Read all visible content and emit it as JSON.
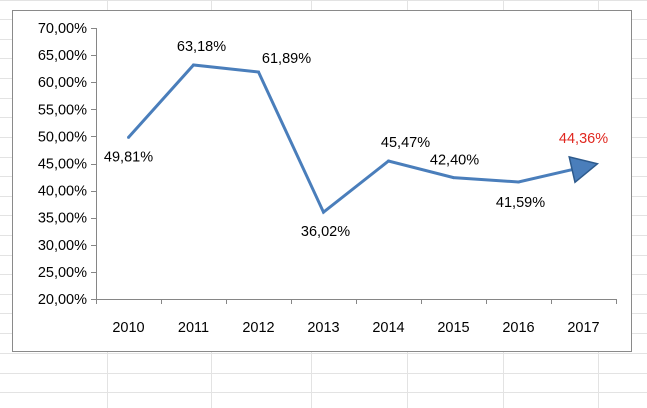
{
  "chart_data": {
    "type": "line",
    "title": "",
    "xlabel": "",
    "ylabel": "",
    "categories": [
      "2010",
      "2011",
      "2012",
      "2013",
      "2014",
      "2015",
      "2016",
      "2017"
    ],
    "series": [
      {
        "values": [
          49.81,
          63.18,
          61.89,
          36.02,
          45.47,
          42.4,
          41.59,
          44.36
        ],
        "labels": [
          "49,81%",
          "63,18%",
          "61,89%",
          "36,02%",
          "45,47%",
          "42,40%",
          "41,59%",
          "44,36%"
        ],
        "color": "#4a7ebb"
      }
    ],
    "ylim": [
      20,
      70
    ],
    "yticks": [
      20,
      25,
      30,
      35,
      40,
      45,
      50,
      55,
      60,
      65,
      70
    ],
    "ytick_labels": [
      "20,00%",
      "25,00%",
      "30,00%",
      "35,00%",
      "40,00%",
      "45,00%",
      "50,00%",
      "55,00%",
      "60,00%",
      "65,00%",
      "70,00%"
    ],
    "grid": false,
    "legend": "none",
    "highlight_color": "#e0271f",
    "highlighted_label_index": 7,
    "end_marker": "arrow-head"
  }
}
